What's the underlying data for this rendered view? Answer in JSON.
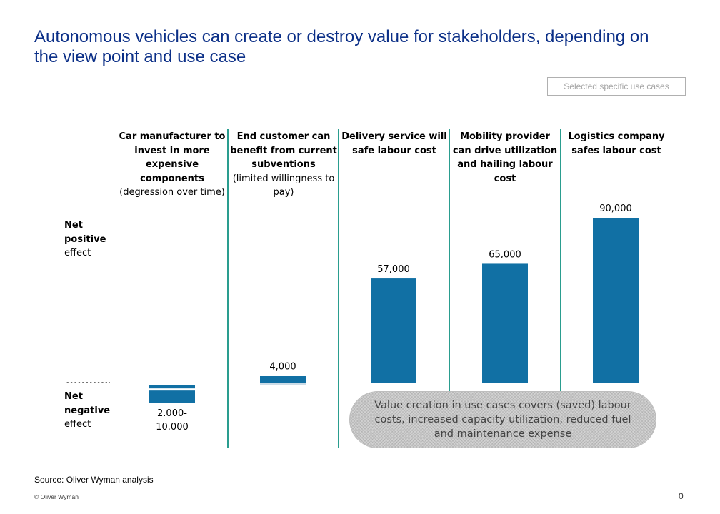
{
  "title": "Autonomous vehicles can create or destroy value for stakeholders, depending on the view point and use case",
  "tag": "Selected specific use cases",
  "side_labels": {
    "positive": {
      "bold": "Net positive",
      "normal": "effect"
    },
    "negative": {
      "bold": "Net negative",
      "normal": "effect"
    },
    "divider": "---------------"
  },
  "columns": [
    {
      "bold": "Car manufacturer to invest in more expensive components",
      "normal": "(degression over time)"
    },
    {
      "bold": "End customer can benefit from current subventions",
      "normal": "(limited willingness to pay)"
    },
    {
      "bold": "Delivery service will safe labour cost",
      "normal": ""
    },
    {
      "bold": "Mobility provider can drive utilization and hailing labour cost",
      "normal": ""
    },
    {
      "bold": "Logistics company safes labour cost",
      "normal": ""
    }
  ],
  "chart_data": {
    "type": "bar",
    "categories": [
      "Car manufacturer",
      "End customer",
      "Delivery service",
      "Mobility provider",
      "Logistics company"
    ],
    "values": [
      -6000,
      4000,
      57000,
      65000,
      90000
    ],
    "value_labels": [
      "2.000-\n10.000",
      "4,000",
      "57,000",
      "65,000",
      "90,000"
    ],
    "range_low": [
      2000,
      null,
      null,
      null,
      null
    ],
    "range_high": [
      10000,
      null,
      null,
      null,
      null
    ],
    "bar_color": "#1170a4",
    "separator_color": "#2a9d8f",
    "ylim": [
      -10000,
      90000
    ]
  },
  "callout": "Value creation in use cases covers (saved) labour costs, increased capacity utilization, reduced fuel and maintenance expense",
  "source": "Source: Oliver Wyman analysis",
  "copyright": "© Oliver Wyman",
  "page_number": "0"
}
